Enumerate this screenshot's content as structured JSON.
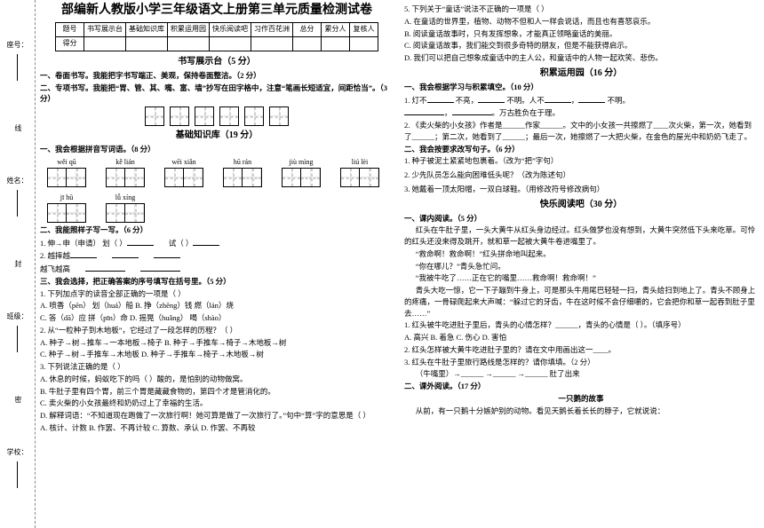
{
  "binding": {
    "labels": [
      "学校：",
      "班级：",
      "姓名：",
      "座号："
    ],
    "cut_labels": [
      "密",
      "封",
      "线"
    ]
  },
  "title": "部编新人教版小学三年级语文上册第三单元质量检测试卷",
  "scoreTable": {
    "headers": [
      "题号",
      "书写展示台",
      "基础知识库",
      "积累运用园",
      "快乐阅读吧",
      "习作百花洲",
      "总分",
      "累分人",
      "复核人"
    ],
    "row2": "得分"
  },
  "sections": {
    "s1": "书写展示台（5 分）",
    "s2": "基础知识库（19 分）",
    "s3": "积累运用园（16 分）",
    "s4": "快乐阅读吧（30 分）"
  },
  "left": {
    "q1_1": "一、卷面书写。我能把字书写端正、美观，保持卷面整洁。（2 分）",
    "q1_2": "二、专项书写。我能把“胃、管、其、嘴、富、墙”抄写在田字格中，注意“笔画长短适宜，间距恰当”。（3 分）",
    "q2_1": "一、我会根据拼音写词语。（8 分）",
    "pinyin": [
      {
        "label": "wěi  qū",
        "cells": 2
      },
      {
        "label": "kě  lián",
        "cells": 2
      },
      {
        "label": "wēi  xiǎn",
        "cells": 2
      },
      {
        "label": "hū  rán",
        "cells": 2
      },
      {
        "label": "jiù  mìng",
        "cells": 2
      },
      {
        "label": "liú  lèi",
        "cells": 2
      },
      {
        "label": "jī  hū",
        "cells": 2
      },
      {
        "label": "lǚ  xíng",
        "cells": 2
      }
    ],
    "q2_2": "二、我能照样子写一写。（6 分）",
    "q2_2a": "1. 伸→申（申请） 划（    ）",
    "q2_2a_b": "试（    ）",
    "q2_2b": "2. 越摔越",
    "q2_2c": "越飞越高",
    "q2_3": "三、我会选择，把正确答案的序号填写在括号里。（5 分）",
    "q2_3_1": "1. 下列加点字的读音全部正确的一项是（    ）",
    "q2_3_1a": "A. 喷香（pēn）   划（huá）船         B. 挣（zhēng）钱   燃（lán）烧",
    "q2_3_1b": "C. 答（dā）应   拼（pīn）命          D. 摇晃（huǎng）   喝（shào）",
    "q2_3_2": "2. 从“一粒种子到木地板”，它经过了一段怎样的历程？（    ）",
    "q2_3_2a": "A. 种子→树→推车→一本地板→椅子   B. 种子→手推车→椅子→木地板→树",
    "q2_3_2b": "C. 种子→树→手推车→木地板         D. 种子→手推车→椅子→木地板→树",
    "q2_3_3": "3. 下列说法正确的是（    ）",
    "q2_3_3a": "A. 休息的时候，蚂蚁吃下的吗（    ）酸的，是怕别的动物做窝。",
    "q2_3_3b": "B. 牛肚子里有四个胃，前三个胃是藏藏食物的，第四个才是管消化的。",
    "q2_3_3c": "C. 卖火柴的小女孩最终和奶奶过上了幸福的生活。",
    "q2_3_3d": "D. 解释词语：“不知道现在跑做了一次旅行啊！她可算是做了一次旅行了。”句中“算”字的意思是（    ）",
    "q2_3_4a": "A. 核计、计数   B. 作罢、不再计较     C. 算数、承认    D. 作罢、不再较"
  },
  "right": {
    "q5": "5. 下列关于“童话”说法不正确的一项是（    ）",
    "q5a": "A. 在童话的世界里，植物、动物不但和人一样会说话，而且也有喜怒哀乐。",
    "q5b": "B. 阅读童话故事时，只有发挥想象，才能真正领略童话的美丽。",
    "q5c": "C. 阅读童话故事，我们能交到很多奇特的朋友，但是不能获得启示。",
    "q5d": "D. 我们可以把自己想象成童话中的主人公，和童话中的人物一起欢笑、悲伤。",
    "q3_1": "一、我会根据学习与积累填空。（10 分）",
    "q3_1a": "1. 灯不",
    "q3_1a2": "不亮，",
    "q3_1a3": "不明。人不",
    "q3_1a4": "不明。",
    "q3_1a5": "。万古胜负在于理。",
    "q3_1b": "2. 《卖火柴的小女孩》作者是______作家______。文中的小女孩一共擦燃了____次火柴，第一次，她看到了______；第二次，她看到了______；最后一次，她擦燃了一大把火柴，在金色的屋光中和奶奶飞走了。",
    "q3_2": "二、我会按要求改写句子。（6 分）",
    "q3_2a": "1. 种子被泥土紧紧地包裹着。（改为“把”字句）",
    "q3_2b": "2. 少先队员怎么能向困难低头呢？（改为陈述句）",
    "q3_2c": "3. 她戴着一顶太阳帽，一双白球鞋。（用修改符号修改病句）",
    "q4_1": "一、课内阅读。（5 分）",
    "para1": "红头在牛肚子里，一头大黄牛从红头身边经过。红头做梦也没有想到，大黄牛突然低下头来吃草。可怜的红头还没来得及跳开，就和草一起被大黄牛卷进嘴里了。",
    "para2": "“救命啊！救命啊！”红头拼命地叫起来。",
    "para3": "“你在哪儿？”青头急忙问。",
    "para4": "“我被牛吃了……正在它的嘴里……救命啊！救命啊！”",
    "para5": "青头大吃一惊，它一下子蹦到牛身上，可是那头牛用尾巴轻轻一扫，青头给扫到地上了。青头不顾身上的疼痛，一骨碌爬起来大声喊：“躲过它的牙齿，牛在这时候不会仔细嚼的，它会把你和草一起吞到肚子里去……”",
    "q4_1_1": "1. 红头被牛吃进肚子里后，青头的心情怎样？______，青头的心情是（    ）。（填序号）",
    "q4_1_1opts": "A. 高兴       B. 着急       C. 伤心       D. 害怕",
    "q4_1_2": "2. 红头怎样被大黄牛吃进肚子里的？请在文中用画出这一____。",
    "q4_1_3": "3. 红头在牛肚子里旅行路线是怎样的？请你填填。（2 分）",
    "q4_1_3a": "（牛嘴里）→______ →______ →______ 肚了出来",
    "q4_2": "二、课外阅读。（17 分）",
    "story_title": "一只鹅的故事",
    "story_p1": "从前，有一只鹅十分嫉妒别的动物。看见天鹅长着长长的脖子，它就说说："
  }
}
